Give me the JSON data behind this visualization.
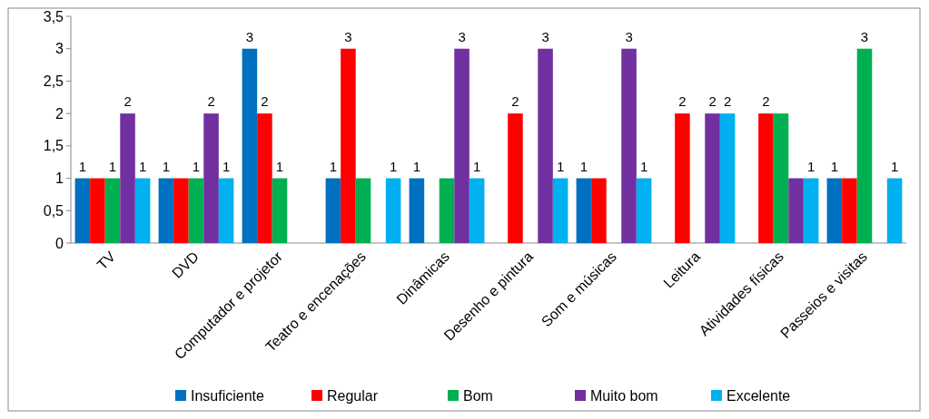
{
  "chart_data": {
    "type": "bar",
    "categories": [
      "TV",
      "DVD",
      "Computador e projetor",
      "Teatro e encenações",
      "Dinâmicas",
      "Desenho e pintura",
      "Som e músicas",
      "Leitura",
      "Atividades físicas",
      "Passeios e visitas"
    ],
    "series": [
      {
        "name": "Insuficiente",
        "color": "#0070c0",
        "values": [
          1,
          1,
          3,
          1,
          1,
          0,
          1,
          0,
          0,
          1
        ],
        "value_labels": [
          "1",
          "1",
          "3",
          "1",
          "1",
          null,
          "1",
          null,
          null,
          "1"
        ]
      },
      {
        "name": "Regular",
        "color": "#ff0000",
        "values": [
          1,
          1,
          2,
          3,
          0,
          2,
          1,
          2,
          2,
          1
        ],
        "value_labels": [
          null,
          null,
          "2",
          "3",
          null,
          "2",
          null,
          "2",
          "2",
          null
        ]
      },
      {
        "name": "Bom",
        "color": "#00b050",
        "values": [
          1,
          1,
          1,
          1,
          1,
          0,
          0,
          0,
          2,
          3
        ],
        "value_labels": [
          "1",
          "1",
          "1",
          null,
          null,
          null,
          null,
          null,
          null,
          "3"
        ]
      },
      {
        "name": "Muito bom",
        "color": "#7030a0",
        "values": [
          2,
          2,
          0,
          0,
          3,
          3,
          3,
          2,
          1,
          0
        ],
        "value_labels": [
          "2",
          "2",
          null,
          null,
          "3",
          "3",
          "3",
          "2",
          null,
          null
        ]
      },
      {
        "name": "Excelente",
        "color": "#00b0f0",
        "values": [
          1,
          1,
          0,
          1,
          1,
          1,
          1,
          2,
          1,
          1
        ],
        "value_labels": [
          "1",
          "1",
          null,
          "1",
          "1",
          "1",
          "1",
          "2",
          "1",
          "1"
        ]
      }
    ],
    "ylim": [
      0,
      3.5
    ],
    "yticks": [
      0,
      {
        "value": 0.5,
        "label": "0,5"
      },
      1,
      {
        "value": 1.5,
        "label": "1,5"
      },
      2,
      {
        "value": 2.5,
        "label": "2,5"
      },
      3,
      {
        "value": 3.5,
        "label": "3,5"
      }
    ],
    "grid": false,
    "legend": "bottom"
  }
}
